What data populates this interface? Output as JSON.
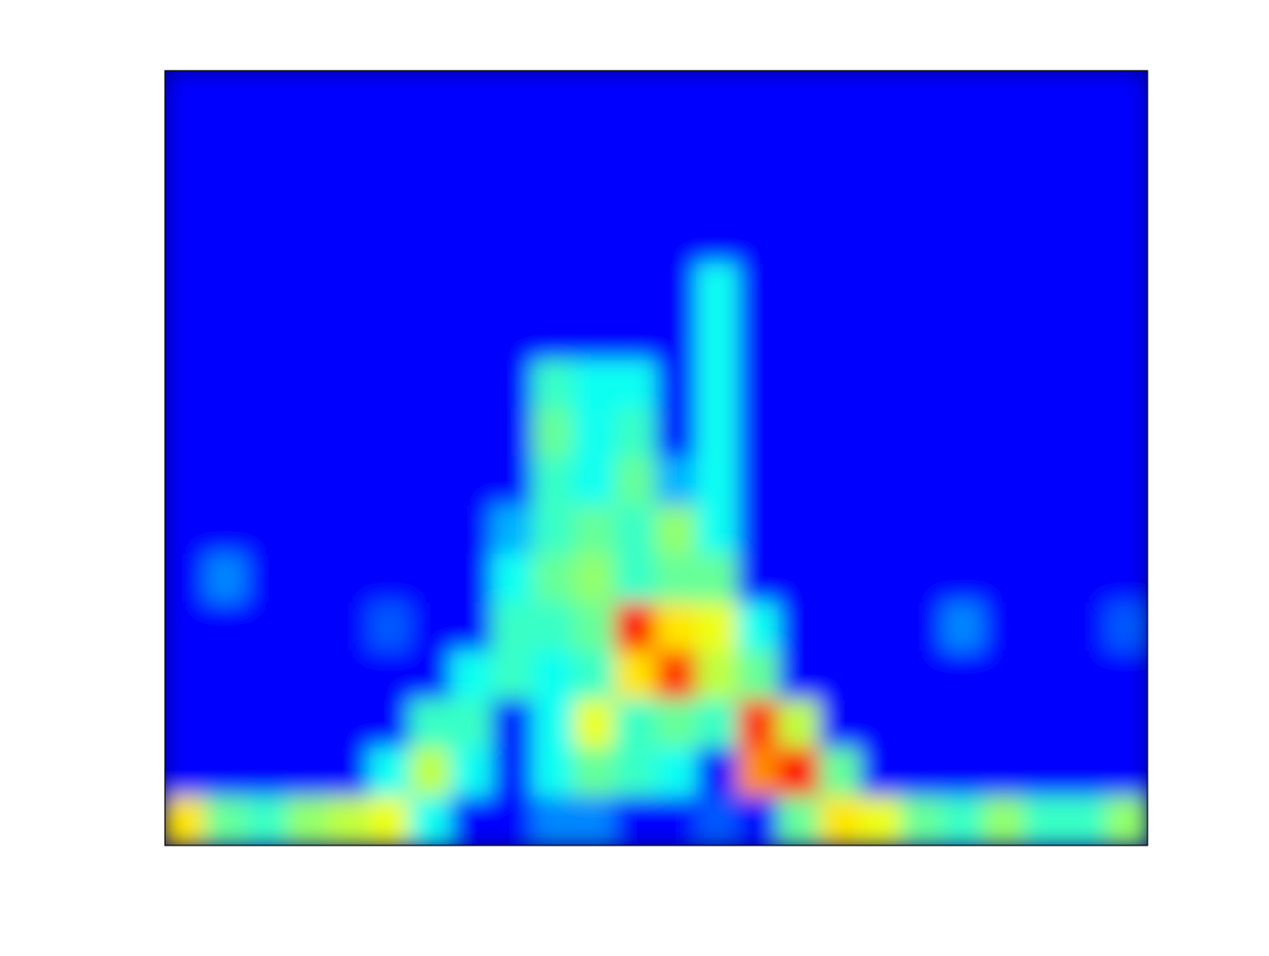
{
  "chart_data": {
    "type": "heatmap",
    "colormap": "jet",
    "zlim": [
      0,
      1
    ],
    "z": [
      [
        0,
        0,
        0,
        0,
        0,
        0,
        0,
        0,
        0,
        0,
        0,
        0,
        0,
        0,
        0,
        0,
        0,
        0,
        0,
        0,
        0,
        0,
        0,
        0
      ],
      [
        0,
        0,
        0,
        0,
        0,
        0,
        0,
        0,
        0,
        0,
        0,
        0,
        0,
        0,
        0,
        0,
        0,
        0,
        0,
        0,
        0,
        0,
        0,
        0
      ],
      [
        0,
        0,
        0,
        0,
        0,
        0,
        0,
        0,
        0,
        0,
        0,
        0,
        0,
        0,
        0,
        0,
        0,
        0,
        0,
        0,
        0,
        0,
        0,
        0
      ],
      [
        0,
        0,
        0,
        0,
        0,
        0,
        0,
        0,
        0,
        0,
        0,
        0,
        0,
        0,
        0,
        0,
        0,
        0,
        0,
        0,
        0,
        0,
        0,
        0
      ],
      [
        0,
        0,
        0,
        0,
        0,
        0,
        0,
        0,
        0,
        0,
        0,
        0,
        0,
        0.3,
        0,
        0,
        0,
        0,
        0,
        0,
        0,
        0,
        0,
        0
      ],
      [
        0,
        0,
        0,
        0,
        0,
        0,
        0,
        0,
        0,
        0,
        0,
        0,
        0,
        0.3,
        0,
        0,
        0,
        0,
        0,
        0,
        0,
        0,
        0,
        0
      ],
      [
        0,
        0,
        0,
        0,
        0,
        0,
        0,
        0,
        0,
        0.35,
        0.3,
        0.3,
        0,
        0.3,
        0,
        0,
        0,
        0,
        0,
        0,
        0,
        0,
        0,
        0
      ],
      [
        0,
        0,
        0,
        0,
        0,
        0,
        0,
        0,
        0,
        0.4,
        0.3,
        0.35,
        0,
        0.3,
        0,
        0,
        0,
        0,
        0,
        0,
        0,
        0,
        0,
        0
      ],
      [
        0,
        0,
        0,
        0,
        0,
        0,
        0,
        0,
        0,
        0.35,
        0.3,
        0.4,
        0.2,
        0.3,
        0,
        0,
        0,
        0,
        0,
        0,
        0,
        0,
        0,
        0
      ],
      [
        0,
        0,
        0,
        0,
        0,
        0,
        0,
        0,
        0.2,
        0.35,
        0.4,
        0.35,
        0.45,
        0.3,
        0,
        0,
        0,
        0,
        0,
        0,
        0,
        0,
        0,
        0
      ],
      [
        0,
        0.15,
        0,
        0,
        0,
        0,
        0,
        0,
        0.3,
        0.4,
        0.45,
        0.35,
        0.4,
        0.4,
        0,
        0,
        0,
        0,
        0,
        0,
        0,
        0,
        0,
        0
      ],
      [
        0,
        0,
        0,
        0,
        0,
        0.1,
        0,
        0,
        0.35,
        0.35,
        0.4,
        0.85,
        0.6,
        0.55,
        0.3,
        0,
        0,
        0,
        0,
        0.15,
        0,
        0,
        0,
        0.1
      ],
      [
        0,
        0,
        0,
        0,
        0,
        0,
        0,
        0.3,
        0.35,
        0.3,
        0.35,
        0.6,
        0.8,
        0.5,
        0.4,
        0,
        0,
        0,
        0,
        0,
        0,
        0,
        0,
        0
      ],
      [
        0,
        0,
        0,
        0,
        0,
        0,
        0.35,
        0.35,
        0,
        0.3,
        0.55,
        0.35,
        0.4,
        0.35,
        0.8,
        0.5,
        0,
        0,
        0,
        0,
        0,
        0,
        0,
        0
      ],
      [
        0,
        0,
        0,
        0,
        0,
        0.3,
        0.5,
        0.3,
        0,
        0.3,
        0.4,
        0.35,
        0.3,
        0,
        0.7,
        0.85,
        0.4,
        0,
        0,
        0,
        0,
        0,
        0,
        0
      ],
      [
        0.6,
        0.4,
        0.35,
        0.45,
        0.5,
        0.55,
        0.3,
        0,
        0,
        0.15,
        0.15,
        0,
        0,
        0.1,
        0,
        0.4,
        0.6,
        0.55,
        0.4,
        0.35,
        0.45,
        0.35,
        0.35,
        0.45
      ]
    ]
  }
}
